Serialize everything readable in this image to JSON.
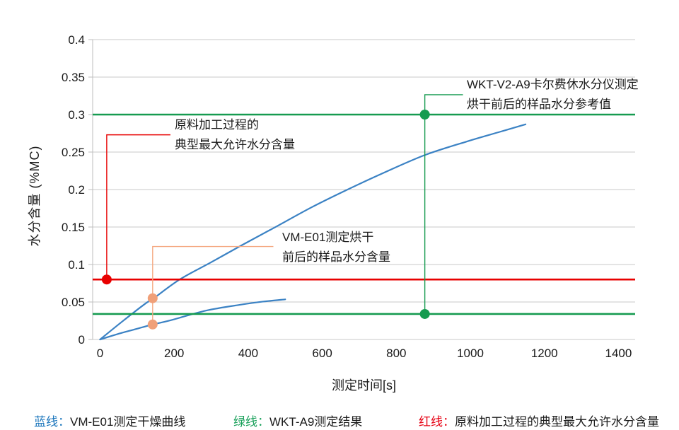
{
  "chart_data": {
    "type": "line",
    "title": "",
    "xlabel": "测定时间[s]",
    "ylabel": "水分含量 (%MC)",
    "xlim": [
      -20,
      1445
    ],
    "ylim": [
      0,
      0.4
    ],
    "x_ticks": [
      0,
      200,
      400,
      600,
      800,
      1000,
      1200,
      1400
    ],
    "x_tick_labels": [
      "0",
      "200",
      "400",
      "600",
      "800",
      "1000",
      "1200",
      "1400"
    ],
    "y_ticks": [
      0,
      0.05,
      0.1,
      0.15,
      0.2,
      0.25,
      0.3,
      0.35,
      0.4
    ],
    "y_tick_labels": [
      "0",
      "0.05",
      "0.1",
      "0.15",
      "0.2",
      "0.25",
      "0.3",
      "0.35",
      "0.4"
    ],
    "grid": "horizontal",
    "grid_color": "#c9c9c9",
    "spine_color": "#bdbdbd",
    "series": [
      {
        "color": "#3b82c4",
        "width": 2.2,
        "points": [
          [
            0,
            0
          ],
          [
            60,
            0.024
          ],
          [
            120,
            0.047
          ],
          [
            145,
            0.055
          ],
          [
            215,
            0.08
          ],
          [
            300,
            0.103
          ],
          [
            380,
            0.125
          ],
          [
            470,
            0.149
          ],
          [
            570,
            0.176
          ],
          [
            660,
            0.198
          ],
          [
            760,
            0.221
          ],
          [
            877,
            0.246
          ],
          [
            990,
            0.264
          ],
          [
            1080,
            0.277
          ],
          [
            1149,
            0.287
          ]
        ]
      },
      {
        "color": "#3b82c4",
        "width": 2.2,
        "points": [
          [
            0,
            0
          ],
          [
            60,
            0.009
          ],
          [
            120,
            0.017
          ],
          [
            142,
            0.02
          ],
          [
            190,
            0.0255
          ],
          [
            286,
            0.0385
          ],
          [
            381,
            0.0465
          ],
          [
            440,
            0.0505
          ],
          [
            500,
            0.0535
          ]
        ]
      }
    ],
    "ref_lines": [
      {
        "y": 0.3,
        "color": "#169b50",
        "width": 2.6
      },
      {
        "y": 0.034,
        "color": "#169b50",
        "width": 2.6
      },
      {
        "y": 0.08,
        "color": "#e80000",
        "width": 2.6
      }
    ],
    "callouts": [
      {
        "color": "#e80000",
        "width": 1.4,
        "points": [
          [
            190,
            0.273
          ],
          [
            18,
            0.273
          ],
          [
            18,
            0.08
          ]
        ]
      },
      {
        "color": "#f5a881",
        "width": 1.4,
        "points": [
          [
            468,
            0.124
          ],
          [
            142,
            0.124
          ],
          [
            142,
            0.02
          ]
        ]
      },
      {
        "color": "#169b50",
        "width": 1.4,
        "points": [
          [
            980,
            0.3265
          ],
          [
            877,
            0.3265
          ],
          [
            877,
            0.034
          ]
        ]
      }
    ],
    "markers": [
      {
        "x": 877,
        "y": 0.3,
        "r": 7,
        "color": "#169b50"
      },
      {
        "x": 877,
        "y": 0.034,
        "r": 7,
        "color": "#169b50"
      },
      {
        "x": 18,
        "y": 0.08,
        "r": 7,
        "color": "#e80000"
      },
      {
        "x": 142,
        "y": 0.055,
        "r": 7,
        "color": "#f0a079"
      },
      {
        "x": 142,
        "y": 0.02,
        "r": 7,
        "color": "#f0a079"
      }
    ],
    "annotations": [
      {
        "lines": [
          "WKT-V2-A9卡尔费休水分仪测定",
          "烘干前后的样品水分参考值"
        ]
      },
      {
        "lines": [
          "原料加工过程的",
          "典型最大允许水分含量"
        ]
      },
      {
        "lines": [
          "VM-E01测定烘干",
          "前后的样品水分含量"
        ]
      }
    ]
  },
  "legend": {
    "items": [
      {
        "label": "蓝线：",
        "text": "VM-E01测定干燥曲线",
        "color": "#1a75bc"
      },
      {
        "label": "绿线：",
        "text": "WKT-A9测定结果",
        "color": "#18a05a"
      },
      {
        "label": "红线：",
        "text": "原料加工过程的典型最大允许水分含量",
        "color": "#e60012"
      }
    ]
  }
}
